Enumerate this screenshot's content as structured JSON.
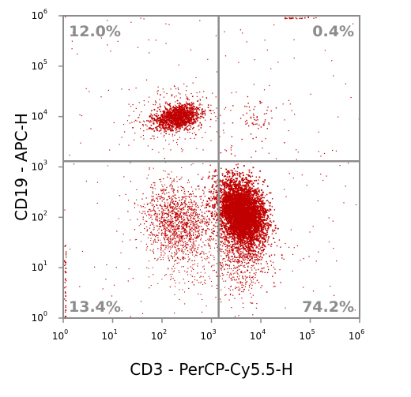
{
  "chart_data": {
    "type": "scatter",
    "xlabel": "CD3 - PerCP-Cy5.5-H",
    "ylabel": "CD19 - APC-H",
    "x_scale": "log",
    "y_scale": "log",
    "xlim": [
      1,
      1000000
    ],
    "ylim": [
      1,
      1000000
    ],
    "x_ticks": [
      {
        "base": "10",
        "exp": "0",
        "value": 1
      },
      {
        "base": "10",
        "exp": "1",
        "value": 10
      },
      {
        "base": "10",
        "exp": "2",
        "value": 100
      },
      {
        "base": "10",
        "exp": "3",
        "value": 1000
      },
      {
        "base": "10",
        "exp": "4",
        "value": 10000
      },
      {
        "base": "10",
        "exp": "5",
        "value": 100000
      },
      {
        "base": "10",
        "exp": "6",
        "value": 1000000
      }
    ],
    "y_ticks": [
      {
        "base": "10",
        "exp": "0",
        "value": 1
      },
      {
        "base": "10",
        "exp": "1",
        "value": 10
      },
      {
        "base": "10",
        "exp": "2",
        "value": 100
      },
      {
        "base": "10",
        "exp": "3",
        "value": 1000
      },
      {
        "base": "10",
        "exp": "4",
        "value": 10000
      },
      {
        "base": "10",
        "exp": "5",
        "value": 100000
      },
      {
        "base": "10",
        "exp": "6",
        "value": 1000000
      }
    ],
    "gates": {
      "x": 1400,
      "y": 1300
    },
    "quadrants": [
      {
        "position": "top-left",
        "label": "12.0%",
        "percent": 12.0
      },
      {
        "position": "top-right",
        "label": "0.4%",
        "percent": 0.4
      },
      {
        "position": "bottom-left",
        "label": "13.4%",
        "percent": 13.4
      },
      {
        "position": "bottom-right",
        "label": "74.2%",
        "percent": 74.2
      }
    ],
    "populations": [
      {
        "description": "CD19+ CD3- B cells",
        "center_x": 200,
        "center_y": 10000,
        "approx_events": 2200
      },
      {
        "description": "CD3+ CD19- T cells",
        "center_x": 4000,
        "center_y": 130,
        "approx_events": 9000
      },
      {
        "description": "CD3- CD19- cells",
        "center_x": 220,
        "center_y": 80,
        "approx_events": 2000
      },
      {
        "description": "CD3+ CD19+ events",
        "center_x": 7000,
        "center_y": 9000,
        "approx_events": 50
      }
    ],
    "point_color": "#c00000",
    "gate_line_color": "#8c8c8c",
    "grid": false
  }
}
